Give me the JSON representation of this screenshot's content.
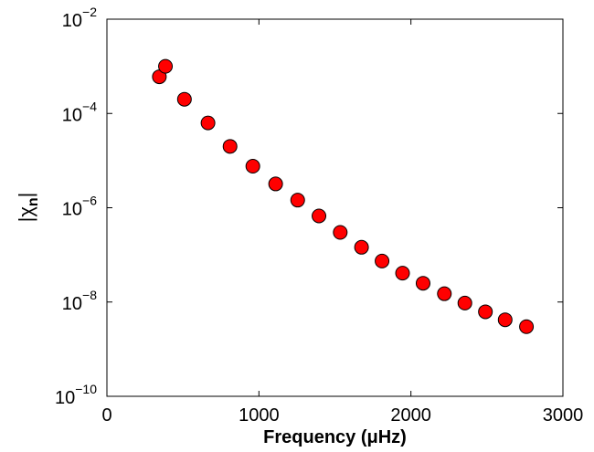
{
  "chart_data": {
    "type": "scatter",
    "xlabel": "Frequency (μHz)",
    "ylabel": "|χn|",
    "ylabel_main": "|χ",
    "ylabel_sub": "n",
    "ylabel_end": "|",
    "xlim": [
      0,
      3000
    ],
    "ylim": [
      1e-10,
      0.01
    ],
    "yscale": "log",
    "grid": false,
    "x_ticks": [
      {
        "value": 0,
        "label": "0"
      },
      {
        "value": 1000,
        "label": "1000"
      },
      {
        "value": 2000,
        "label": "2000"
      },
      {
        "value": 3000,
        "label": "3000"
      }
    ],
    "y_ticks": [
      {
        "value": 1e-10,
        "base": "10",
        "exp": "−10"
      },
      {
        "value": 1e-08,
        "base": "10",
        "exp": "−8"
      },
      {
        "value": 1e-06,
        "base": "10",
        "exp": "−6"
      },
      {
        "value": 0.0001,
        "base": "10",
        "exp": "−4"
      },
      {
        "value": 0.01,
        "base": "10",
        "exp": "−2"
      }
    ],
    "marker_color": "#ff0000",
    "marker_edge": "#000000",
    "points": [
      {
        "x": 345,
        "y": 0.0006
      },
      {
        "x": 385,
        "y": 0.001
      },
      {
        "x": 510,
        "y": 0.0002
      },
      {
        "x": 665,
        "y": 6.3e-05
      },
      {
        "x": 810,
        "y": 2e-05
      },
      {
        "x": 960,
        "y": 7.6e-06
      },
      {
        "x": 1110,
        "y": 3.2e-06
      },
      {
        "x": 1255,
        "y": 1.45e-06
      },
      {
        "x": 1395,
        "y": 6.7e-07
      },
      {
        "x": 1535,
        "y": 3e-07
      },
      {
        "x": 1675,
        "y": 1.45e-07
      },
      {
        "x": 1810,
        "y": 7.4e-08
      },
      {
        "x": 1945,
        "y": 4.1e-08
      },
      {
        "x": 2080,
        "y": 2.5e-08
      },
      {
        "x": 2220,
        "y": 1.5e-08
      },
      {
        "x": 2355,
        "y": 9.5e-09
      },
      {
        "x": 2490,
        "y": 6.2e-09
      },
      {
        "x": 2620,
        "y": 4.2e-09
      },
      {
        "x": 2760,
        "y": 3e-09
      }
    ]
  }
}
